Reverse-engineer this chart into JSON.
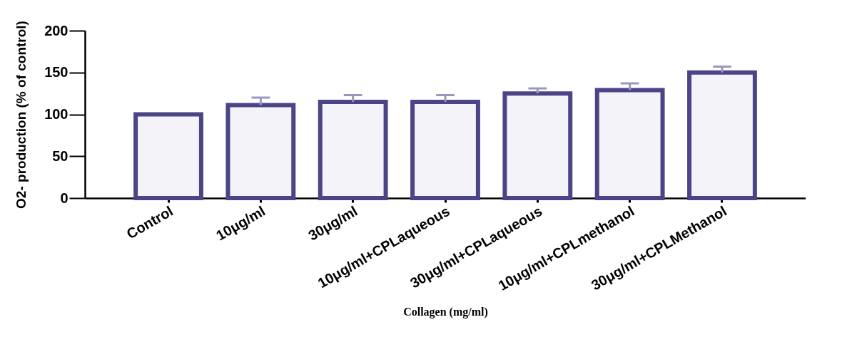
{
  "chart_data": {
    "type": "bar",
    "xlabel": "Collagen (mg/ml)",
    "ylabel": "O2- production (% of control)",
    "categories": [
      "Control",
      "10μg/ml",
      "30μg/ml",
      "10μg/ml+CPLaqueous",
      "30μg/ml+CPLaqueous",
      "10μg/ml+CPLmethanol",
      "30μg/ml+CPLMethanol"
    ],
    "values": [
      100,
      111,
      115,
      115,
      125,
      129,
      150
    ],
    "errors": [
      null,
      [
        111,
        120
      ],
      [
        115,
        123
      ],
      [
        115,
        123
      ],
      [
        125,
        131
      ],
      [
        129,
        137
      ],
      [
        150,
        157
      ]
    ],
    "color": "#4b4486",
    "ylim": [
      0,
      200
    ],
    "yticks": [
      0,
      50,
      100,
      150,
      200
    ],
    "grid": false
  }
}
